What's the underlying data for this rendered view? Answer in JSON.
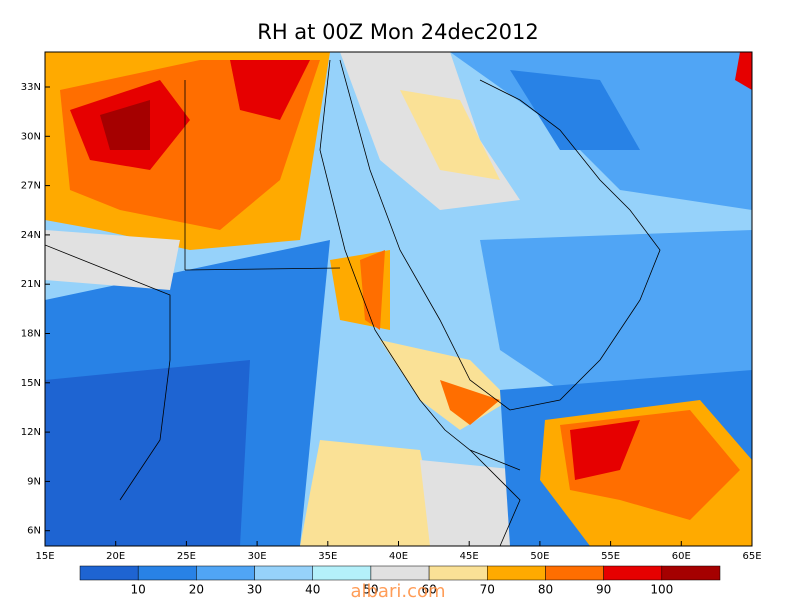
{
  "title": "RH at 00Z Mon 24dec2012",
  "lat_labels": [
    "33N",
    "30N",
    "27N",
    "24N",
    "21N",
    "18N",
    "15N",
    "12N",
    "9N",
    "6N"
  ],
  "lon_labels": [
    "15E",
    "20E",
    "25E",
    "30E",
    "35E",
    "40E",
    "45E",
    "50E",
    "55E",
    "60E",
    "65E"
  ],
  "colorbar": {
    "colors": [
      "#1e64d2",
      "#2882e6",
      "#50a5f5",
      "#96d2fa",
      "#b4f0fa",
      "#e1e1e1",
      "#fae196",
      "#ffaa00",
      "#ff6e00",
      "#e60000",
      "#a50000"
    ],
    "labels": [
      "10",
      "20",
      "30",
      "40",
      "50",
      "60",
      "70",
      "80",
      "90",
      "100"
    ]
  },
  "watermark": "albari.com"
}
